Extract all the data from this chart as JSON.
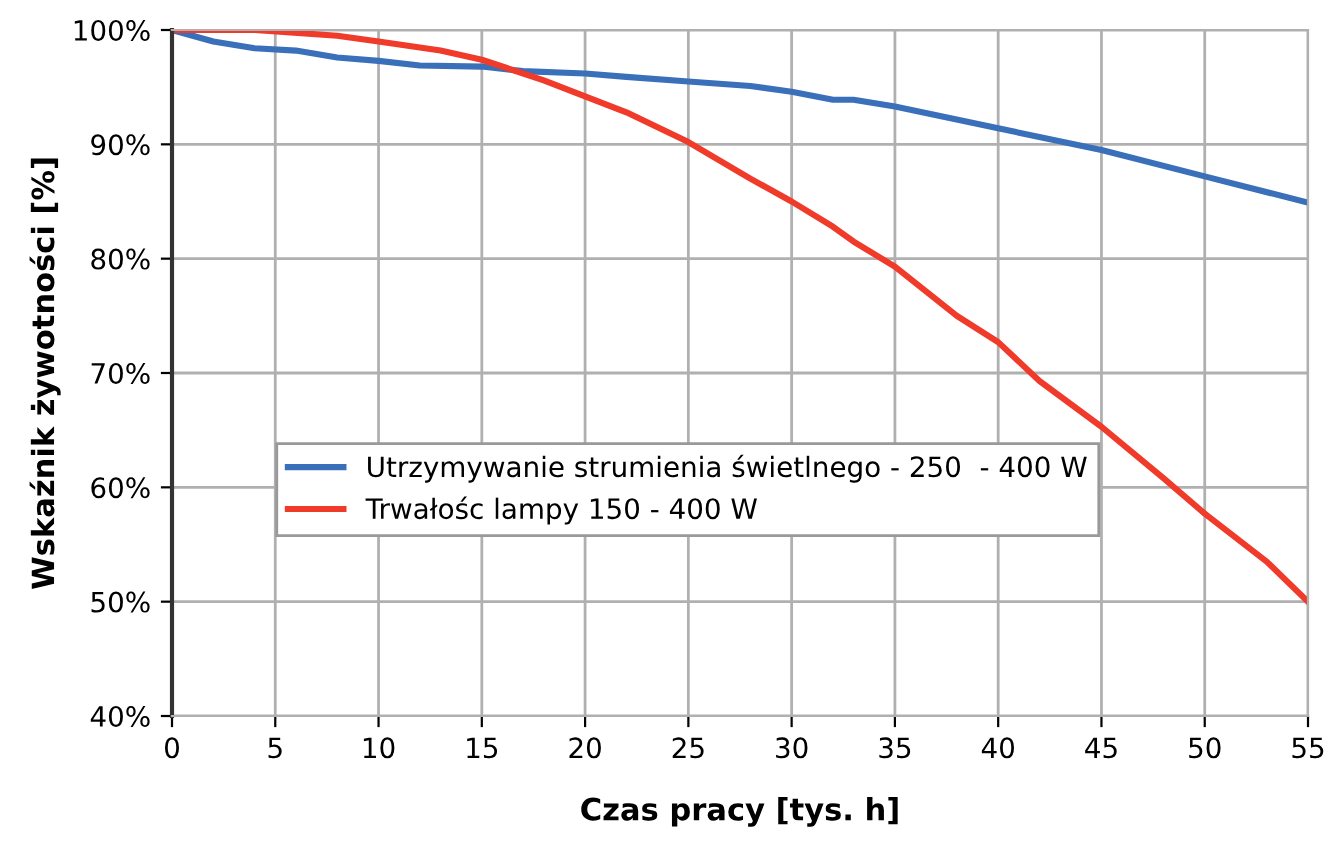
{
  "chart_data": {
    "type": "line",
    "xlabel": "Czas pracy [tys. h]",
    "ylabel": "Wskaźnik żywotności [%]",
    "xlim": [
      0,
      55
    ],
    "xticks": [
      0,
      5,
      10,
      15,
      20,
      25,
      30,
      35,
      40,
      45,
      50,
      55
    ],
    "ylim": [
      40,
      100
    ],
    "yticks": [
      {
        "value": 40,
        "label": "40%"
      },
      {
        "value": 50,
        "label": "50%"
      },
      {
        "value": 60,
        "label": "60%"
      },
      {
        "value": 70,
        "label": "70%"
      },
      {
        "value": 80,
        "label": "80%"
      },
      {
        "value": 90,
        "label": "90%"
      },
      {
        "value": 100,
        "label": "100%"
      }
    ],
    "grid": true,
    "legend": "left",
    "marker": "none",
    "line_style": "solid",
    "series": [
      {
        "name": "Utrzymywanie strumienia świetlnego - 250  - 400 W",
        "color": "#3a6fba",
        "x": [
          0,
          2,
          4,
          6,
          8,
          10,
          12,
          15,
          17,
          20,
          22,
          25,
          28,
          30,
          32,
          33,
          35,
          40,
          45,
          50,
          55
        ],
        "values": [
          100,
          99,
          98.4,
          98.2,
          97.6,
          97.3,
          96.9,
          96.8,
          96.4,
          96.2,
          95.9,
          95.5,
          95.1,
          94.6,
          93.9,
          93.9,
          93.3,
          91.4,
          89.5,
          87.2,
          84.9
        ]
      },
      {
        "name": "Trwałośc lampy 150 - 400 W",
        "color": "#f03a2a",
        "x": [
          0,
          4,
          8,
          10,
          13,
          15,
          18,
          20,
          22,
          25,
          28,
          30,
          32,
          33,
          35,
          38,
          40,
          42,
          45,
          48,
          50,
          53,
          55
        ],
        "values": [
          100,
          100,
          99.5,
          99,
          98.2,
          97.4,
          95.6,
          94.2,
          92.8,
          90.2,
          87,
          85,
          82.8,
          81.5,
          79.3,
          75,
          72.7,
          69.3,
          65.3,
          60.8,
          57.7,
          53.5,
          50
        ]
      }
    ]
  }
}
